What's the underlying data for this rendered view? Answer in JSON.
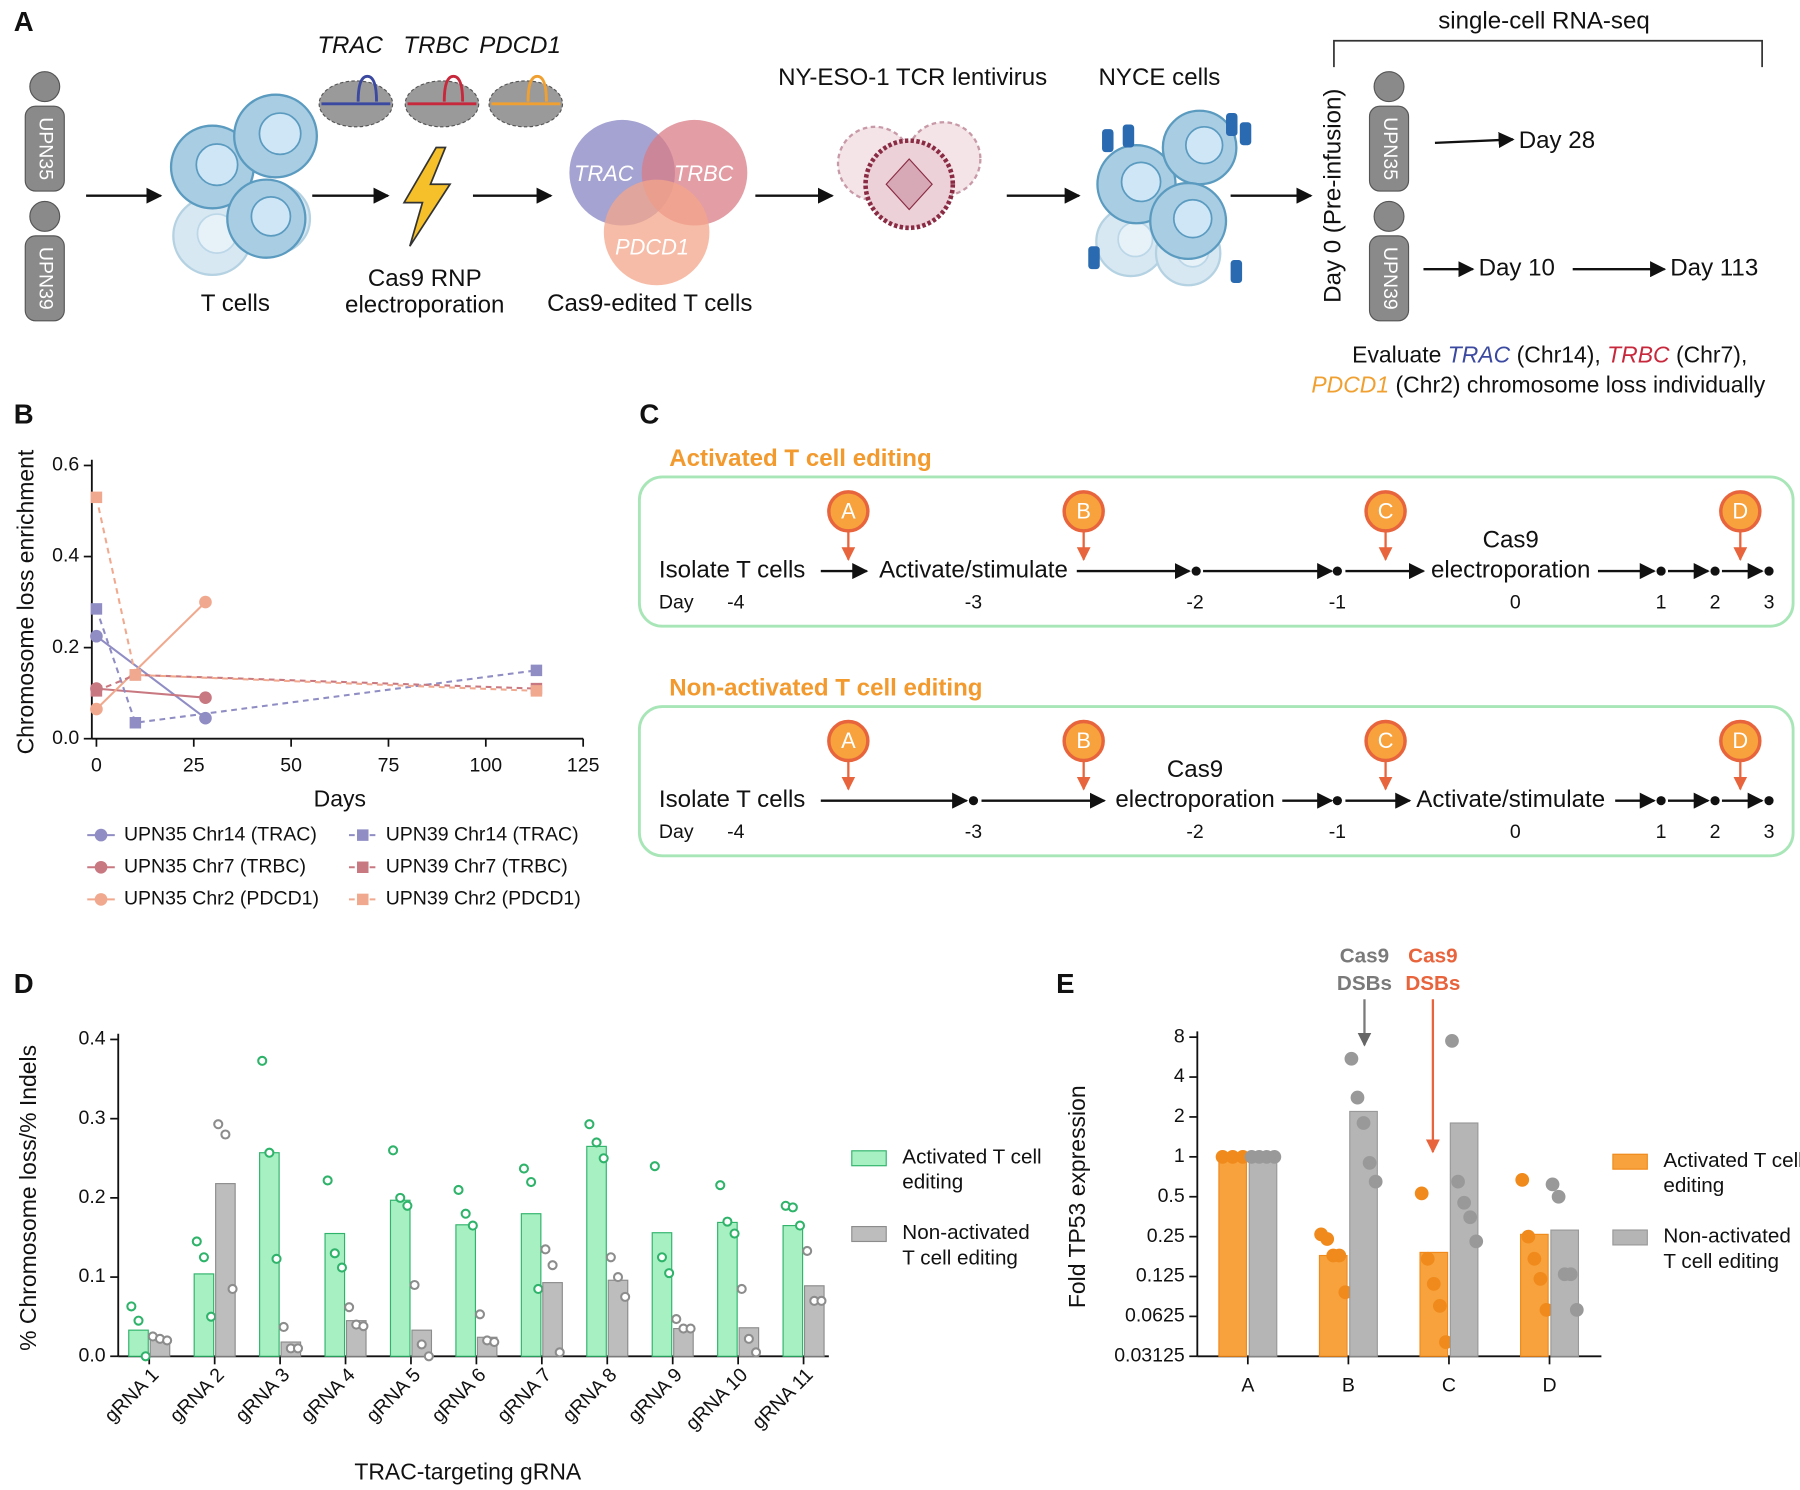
{
  "panel_a": {
    "label": "A",
    "guides": [
      "TRAC",
      "TRBC",
      "PDCD1"
    ],
    "guide_colors": [
      "#3b4aa0",
      "#c8283c",
      "#f0a030"
    ],
    "donors": [
      "UPN35",
      "UPN39"
    ],
    "t_cells": "T cells",
    "rnp": [
      "Cas9 RNP",
      "electroporation"
    ],
    "venn": [
      "TRAC",
      "TRBC",
      "PDCD1"
    ],
    "edited": "Cas9-edited T cells",
    "virus": "NY-ESO-1 TCR lentivirus",
    "nyce": "NYCE cells",
    "day0": "Day 0 (Pre-infusion)",
    "scrna": "single-cell RNA-seq",
    "followup": [
      "Day 28",
      "Day 10",
      "Day 113"
    ],
    "evaluate": [
      [
        {
          "text": "Evaluate ",
          "color": "#111111",
          "italic": false
        },
        {
          "text": "TRAC",
          "color": "#3b4aa0",
          "italic": true
        },
        {
          "text": " (Chr14), ",
          "color": "#111111",
          "italic": false
        },
        {
          "text": "TRBC",
          "color": "#c8283c",
          "italic": true
        },
        {
          "text": " (Chr7),",
          "color": "#111111",
          "italic": false
        }
      ],
      [
        {
          "text": "PDCD1",
          "color": "#f0a030",
          "italic": true
        },
        {
          "text": " (Chr2) chromosome loss individually",
          "color": "#111111",
          "italic": false
        }
      ]
    ]
  },
  "panel_c": {
    "label": "C",
    "markers": [
      "A",
      "B",
      "C",
      "D"
    ],
    "day_label": "Day",
    "days": [
      -4,
      -3,
      -2,
      -1,
      0,
      1,
      2,
      3
    ],
    "timelines": [
      {
        "title": "Activated T cell editing",
        "steps": [
          "Isolate T cells",
          "Activate/stimulate",
          [
            "Cas9",
            "electroporation"
          ]
        ]
      },
      {
        "title": "Non-activated T cell editing",
        "steps": [
          "Isolate T cells",
          [
            "Cas9",
            "electroporation"
          ],
          "Activate/stimulate"
        ]
      }
    ]
  },
  "chart_data": [
    {
      "label": "B",
      "type": "line",
      "xlabel": "Days",
      "ylabel": "Chromosome loss enrichment",
      "xlim": [
        0,
        125
      ],
      "xticks": [
        0,
        25,
        50,
        75,
        100,
        125
      ],
      "ylim": [
        0,
        0.6
      ],
      "yticks": [
        {
          "value": 0,
          "label": "0.0"
        },
        0.2,
        0.4,
        0.6
      ],
      "series": [
        {
          "name": "UPN35 Chr14 (TRAC)",
          "color": "#8f8dc3",
          "marker": "circle",
          "dashed": false,
          "x": [
            0,
            28
          ],
          "values": [
            0.225,
            0.045
          ]
        },
        {
          "name": "UPN35 Chr7 (TRBC)",
          "color": "#c87880",
          "marker": "circle",
          "dashed": false,
          "x": [
            0,
            28
          ],
          "values": [
            0.11,
            0.09
          ]
        },
        {
          "name": "UPN35 Chr2 (PDCD1)",
          "color": "#f0a98e",
          "marker": "circle",
          "dashed": false,
          "x": [
            0,
            28
          ],
          "values": [
            0.065,
            0.3
          ]
        },
        {
          "name": "UPN39 Chr14 (TRAC)",
          "color": "#8f8dc3",
          "marker": "square",
          "dashed": true,
          "x": [
            0,
            10,
            113
          ],
          "values": [
            0.285,
            0.035,
            0.15
          ]
        },
        {
          "name": "UPN39 Chr7 (TRBC)",
          "color": "#c87880",
          "marker": "square",
          "dashed": true,
          "x": [
            0,
            10,
            113
          ],
          "values": [
            0.105,
            0.14,
            0.11
          ]
        },
        {
          "name": "UPN39 Chr2 (PDCD1)",
          "color": "#f0a98e",
          "marker": "square",
          "dashed": true,
          "x": [
            0,
            10,
            113
          ],
          "values": [
            0.53,
            0.14,
            0.105
          ]
        }
      ]
    },
    {
      "label": "D",
      "type": "bar",
      "xlabel": "TRAC-targeting gRNA",
      "ylabel": "% Chromosome loss/% Indels",
      "categories": [
        "gRNA 1",
        "gRNA 2",
        "gRNA 3",
        "gRNA 4",
        "gRNA 5",
        "gRNA 6",
        "gRNA 7",
        "gRNA 8",
        "gRNA 9",
        "gRNA 10",
        "gRNA 11"
      ],
      "ylim": [
        0,
        0.4
      ],
      "yticks": [
        {
          "value": 0,
          "label": "0.0"
        },
        0.1,
        0.2,
        0.3,
        0.4
      ],
      "points_filled": false,
      "series": [
        {
          "name": "Activated T cell editing",
          "color": "#a6f0c2",
          "edge": "#2fb36a",
          "values": [
            0.033,
            0.104,
            0.257,
            0.155,
            0.197,
            0.166,
            0.18,
            0.265,
            0.156,
            0.169,
            0.165
          ],
          "points": [
            [
              0.063,
              0.045,
              0.0
            ],
            [
              0.145,
              0.125,
              0.05
            ],
            [
              0.373,
              0.257,
              0.123
            ],
            [
              0.222,
              0.13,
              0.112
            ],
            [
              0.26,
              0.2,
              0.19
            ],
            [
              0.21,
              0.18,
              0.165
            ],
            [
              0.237,
              0.22,
              0.085
            ],
            [
              0.293,
              0.27,
              0.25
            ],
            [
              0.24,
              0.125,
              0.105
            ],
            [
              0.216,
              0.17,
              0.155
            ],
            [
              0.19,
              0.188,
              0.165
            ]
          ]
        },
        {
          "name": "Non-activated T cell editing",
          "color": "#bdbdbd",
          "edge": "#8c8c8c",
          "values": [
            0.022,
            0.218,
            0.018,
            0.045,
            0.033,
            0.024,
            0.093,
            0.096,
            0.035,
            0.036,
            0.089
          ],
          "points": [
            [
              0.025,
              0.022,
              0.02
            ],
            [
              0.293,
              0.28,
              0.085
            ],
            [
              0.037,
              0.01,
              0.01
            ],
            [
              0.062,
              0.04,
              0.038
            ],
            [
              0.09,
              0.015,
              0.0
            ],
            [
              0.053,
              0.02,
              0.018
            ],
            [
              0.135,
              0.115,
              0.005
            ],
            [
              0.125,
              0.1,
              0.075
            ],
            [
              0.047,
              0.035,
              0.035
            ],
            [
              0.085,
              0.022,
              0.005
            ],
            [
              0.133,
              0.07,
              0.07
            ]
          ]
        }
      ]
    },
    {
      "label": "E",
      "type": "bar",
      "log_scale": 2,
      "ylabel": "Fold TP53 expression",
      "categories": [
        "A",
        "B",
        "C",
        "D"
      ],
      "ylim": [
        0.03125,
        8
      ],
      "yticks": [
        0.03125,
        0.0625,
        0.125,
        0.25,
        0.5,
        1,
        2,
        4,
        8
      ],
      "points_filled": true,
      "series": [
        {
          "name": "Activated T cell editing",
          "color": "#f7a23c",
          "edge": "#f08a1c",
          "values": [
            1,
            0.18,
            0.19,
            0.26
          ],
          "points": [
            [
              1,
              1,
              1
            ],
            [
              0.26,
              0.24,
              0.18,
              0.18,
              0.095
            ],
            [
              0.53,
              0.17,
              0.11,
              0.075,
              0.04
            ],
            [
              0.67,
              0.25,
              0.17,
              0.12,
              0.07
            ]
          ]
        },
        {
          "name": "Non-activated T cell editing",
          "color": "#b5b5b5",
          "edge": "#999999",
          "values": [
            1,
            2.2,
            1.8,
            0.28
          ],
          "points": [
            [
              1,
              1,
              1,
              1
            ],
            [
              5.5,
              2.8,
              1.8,
              0.9,
              0.65
            ],
            [
              7.5,
              0.65,
              0.45,
              0.35,
              0.23
            ],
            [
              0.62,
              0.5,
              0.13,
              0.13,
              0.07
            ]
          ]
        }
      ],
      "annotations": [
        {
          "lines": [
            "Cas9",
            "DSBs"
          ],
          "color": "#7a7a7a",
          "category": 1
        },
        {
          "lines": [
            "Cas9",
            "DSBs"
          ],
          "color": "#e8643c",
          "category": 2
        }
      ]
    }
  ]
}
